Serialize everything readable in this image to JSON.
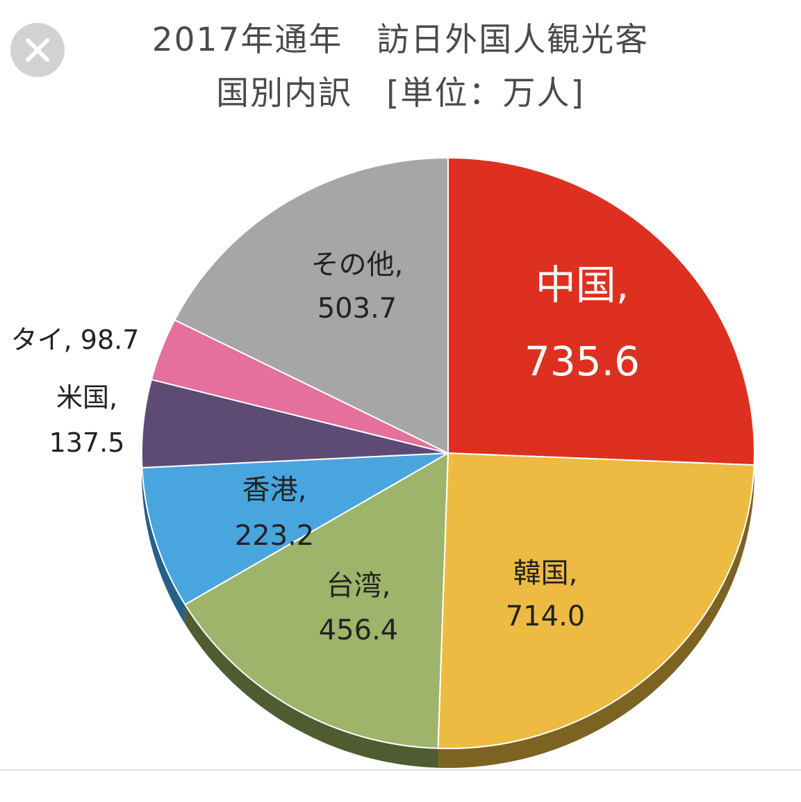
{
  "colors": {
    "close_button_bg": "#d2d2d2",
    "close_icon": "#ffffff"
  },
  "close_button": {
    "icon": "close-icon"
  },
  "chart_data": {
    "type": "pie",
    "title": "2017年通年　訪日外国人観光客",
    "subtitle": "国別内訳　[単位：万人]",
    "unit": "万人",
    "slices": [
      {
        "label": "中国",
        "value": 735.6,
        "value_text": "735.6",
        "color": "#dd3020",
        "side": "#8a1c12",
        "text_color": "#ffffff"
      },
      {
        "label": "韓国",
        "value": 714.0,
        "value_text": "714.0",
        "color": "#edbb41",
        "side": "#7d6322",
        "text_color": "#222222"
      },
      {
        "label": "台湾",
        "value": 456.4,
        "value_text": "456.4",
        "color": "#9db46a",
        "side": "#4f5b31",
        "text_color": "#222222"
      },
      {
        "label": "香港",
        "value": 223.2,
        "value_text": "223.2",
        "color": "#49a5de",
        "side": "#25608a",
        "text_color": "#222222"
      },
      {
        "label": "米国",
        "value": 137.5,
        "value_text": "137.5",
        "color": "#5d4a75",
        "side": "#352a45",
        "text_color": "#222222"
      },
      {
        "label": "タイ",
        "value": 98.7,
        "value_text": "98.7",
        "color": "#e56f9d",
        "side": "#8a3f5c",
        "text_color": "#222222"
      },
      {
        "label": "その他",
        "value": 503.7,
        "value_text": "503.7",
        "color": "#a6a6a6",
        "side": "#5e5e5e",
        "text_color": "#222222"
      }
    ],
    "start_direction": "top",
    "direction": "clockwise",
    "legend": "none"
  }
}
